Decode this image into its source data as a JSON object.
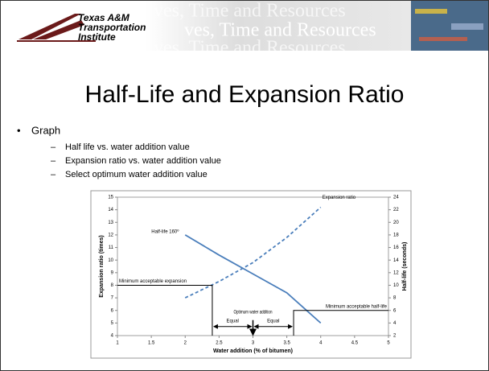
{
  "header": {
    "logo_lines": [
      "Texas A&M",
      "Transportation",
      "Institute"
    ],
    "banner": "ves, Time and Resources"
  },
  "title": "Half-Life and Expansion Ratio",
  "bullet": "Graph",
  "sub_bullets": [
    "Half life vs. water addition value",
    "Expansion ratio vs. water addition value",
    "Select optimum water addition value"
  ],
  "chart_data": {
    "type": "line",
    "xlabel": "Water addition (% of bitumen)",
    "ylabel": "Expansion ratio (times)",
    "y2label": "Half-life (seconds)",
    "xlim": [
      1,
      5
    ],
    "xticks": [
      1,
      1.5,
      2,
      2.5,
      3,
      3.5,
      4,
      4.5,
      5
    ],
    "ylim": [
      4,
      15
    ],
    "yticks": [
      4,
      5,
      6,
      7,
      8,
      9,
      10,
      11,
      12,
      13,
      14,
      15
    ],
    "y2lim": [
      2,
      24
    ],
    "y2ticks": [
      2,
      4,
      6,
      8,
      10,
      12,
      14,
      16,
      18,
      20,
      22,
      24
    ],
    "x": [
      2,
      2.5,
      3,
      3.5,
      4
    ],
    "series": [
      {
        "name": "Half-life 160º",
        "color": "#4a7ebb",
        "axis": "y2",
        "dashed": false,
        "values": [
          18,
          14.8,
          11.8,
          8.8,
          4
        ]
      },
      {
        "name": "Expansion ratio",
        "color": "#4a7ebb",
        "dashed": true,
        "values": [
          7,
          8.3,
          9.8,
          11.8,
          14.2
        ]
      }
    ],
    "reference_lines": [
      {
        "label": "Minimum acceptable expansion",
        "y": 8,
        "x": 2.4
      },
      {
        "label": "Minimum acceptable half-life",
        "y": 6,
        "x": 3.6
      }
    ],
    "optimum": {
      "label": "Optimum water addition",
      "x": 3
    },
    "equal_labels": [
      "Equal",
      "Equal"
    ]
  }
}
